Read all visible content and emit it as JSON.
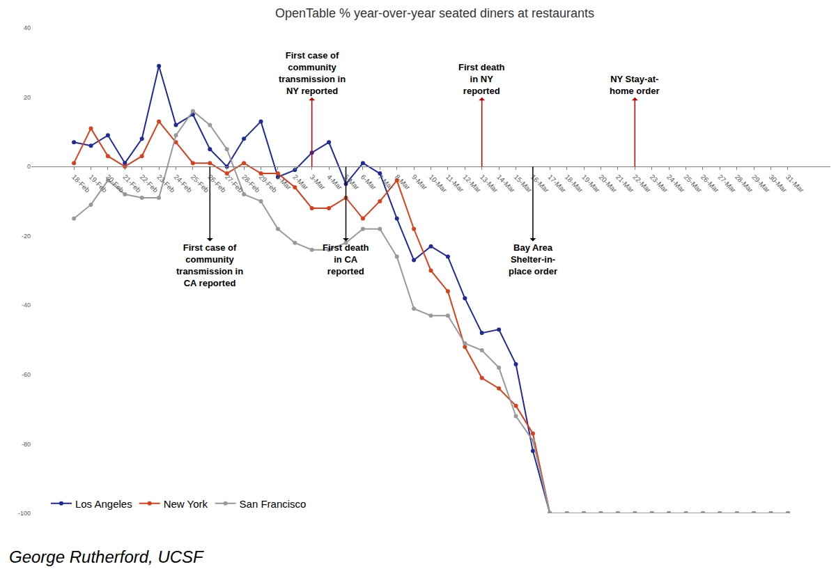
{
  "chart_data": {
    "type": "line",
    "title": "OpenTable % year-over-year seated diners at restaurants",
    "caption": "George Rutherford, UCSF",
    "categories": [
      "18-Feb",
      "19-Feb",
      "20-Feb",
      "21-Feb",
      "22-Feb",
      "23-Feb",
      "24-Feb",
      "25-Feb",
      "26-Feb",
      "27-Feb",
      "28-Feb",
      "29-Feb",
      "1-Mar",
      "2-Mar",
      "3-Mar",
      "4-Mar",
      "5-Mar",
      "6-Mar",
      "7-Mar",
      "8-Mar",
      "9-Mar",
      "10-Mar",
      "11-Mar",
      "12-Mar",
      "13-Mar",
      "14-Mar",
      "15-Mar",
      "16-Mar",
      "17-Mar",
      "18-Mar",
      "19-Mar",
      "20-Mar",
      "21-Mar",
      "22-Mar",
      "23-Mar",
      "24-Mar",
      "25-Mar",
      "26-Mar",
      "27-Mar",
      "28-Mar",
      "29-Mar",
      "30-Mar",
      "31-Mar"
    ],
    "series": [
      {
        "name": "Los Angeles",
        "color": "#1f2a99",
        "values": [
          7,
          6,
          9,
          1,
          8,
          29,
          12,
          15,
          5,
          0,
          8,
          13,
          -3,
          -1,
          4,
          7,
          -5,
          1,
          -2,
          -15,
          -27,
          -23,
          -26,
          -38,
          -48,
          -47,
          -57,
          -82,
          -100,
          -100,
          -100,
          -100,
          -100,
          -100,
          -100,
          -100,
          -100,
          -100,
          -100,
          -100,
          -100,
          -100,
          -100
        ]
      },
      {
        "name": "New York",
        "color": "#d9401a",
        "values": [
          1,
          11,
          3,
          0,
          3,
          13,
          7,
          1,
          1,
          -2,
          1,
          -2,
          -2,
          -6,
          -12,
          -12,
          -9,
          -15,
          -10,
          -4,
          -18,
          -30,
          -36,
          -52,
          -61,
          -64,
          -69,
          -77,
          -100,
          -100,
          -100,
          -100,
          -100,
          -100,
          -100,
          -100,
          -100,
          -100,
          -100,
          -100,
          -100,
          -100,
          -100
        ]
      },
      {
        "name": "San Francisco",
        "color": "#999999",
        "values": [
          -15,
          -11,
          -4,
          -8,
          -9,
          -9,
          9,
          16,
          12,
          5,
          -8,
          -10,
          -18,
          -22,
          -24,
          -24,
          -22,
          -18,
          -18,
          -26,
          -41,
          -43,
          -43,
          -51,
          -53,
          -58,
          -72,
          -79,
          -100,
          -100,
          -100,
          -100,
          -100,
          -100,
          -100,
          -100,
          -100,
          -100,
          -100,
          -100,
          -100,
          -100,
          -100
        ]
      }
    ],
    "ylim": [
      -100,
      40
    ],
    "yticks": [
      -100,
      -80,
      -60,
      -40,
      -20,
      0,
      20,
      40
    ],
    "grid": false,
    "legend": "bottom-left",
    "marker": "circle",
    "annotations": [
      {
        "text": "First case of\ncommunity\ntransmission in\nNY reported",
        "x": "3-Mar",
        "color": "#c00000",
        "marker": "arrow-up"
      },
      {
        "text": "First death\nin NY\nreported",
        "x": "13-Mar",
        "color": "#c00000",
        "marker": "arrow-up"
      },
      {
        "text": "NY Stay-at-\nhome order",
        "x": "22-Mar",
        "color": "#c00000",
        "marker": "arrow-up"
      },
      {
        "text": "First case of\ncommunity\ntransmission in\nCA reported",
        "x": "26-Feb",
        "color": "#000000",
        "marker": "arrow-down"
      },
      {
        "text": "First death\nin CA\nreported",
        "x": "5-Mar",
        "color": "#000000",
        "marker": "arrow-down"
      },
      {
        "text": "Bay Area\nShelter-in-\nplace order",
        "x": "16-Mar",
        "color": "#000000",
        "marker": "arrow-down"
      }
    ]
  }
}
